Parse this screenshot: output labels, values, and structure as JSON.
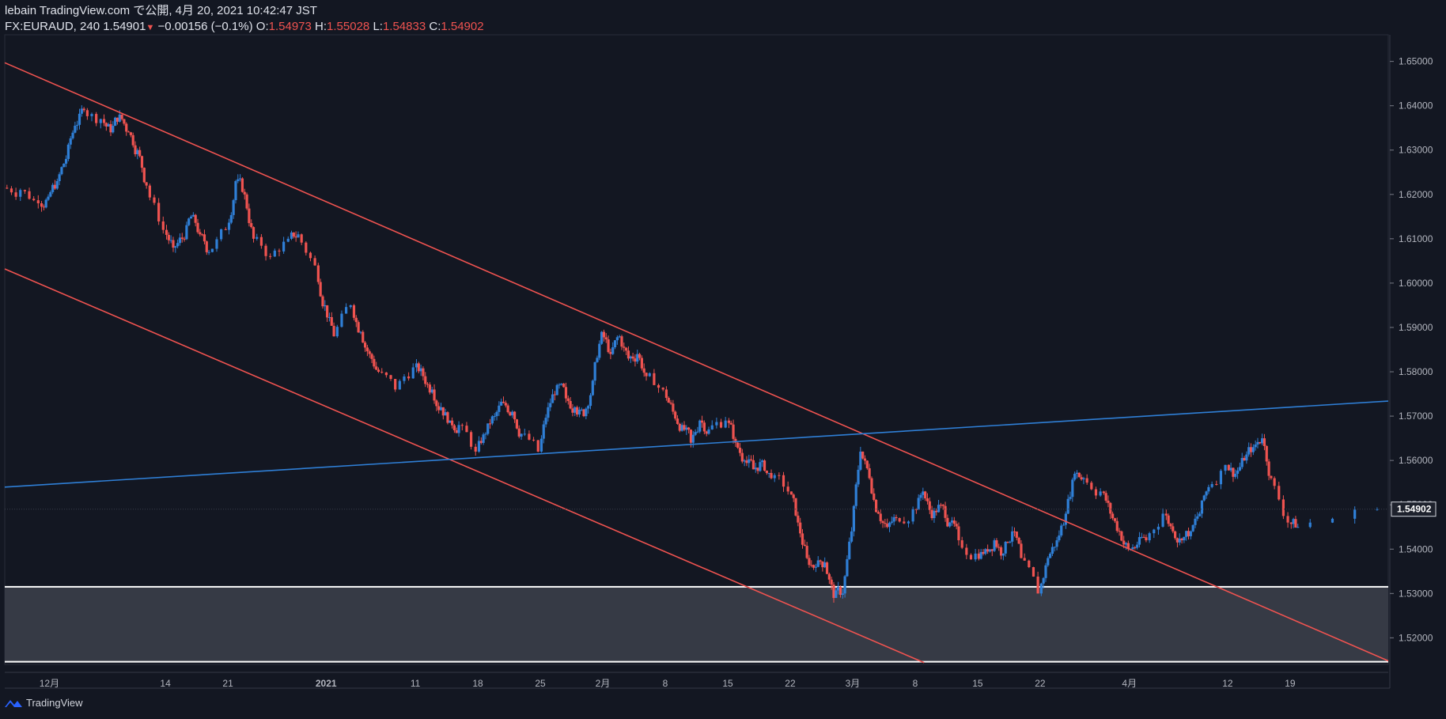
{
  "header": {
    "publish_line": "lebain TradingView.com で公開, 4月 20, 2021 10:42:47 JST",
    "symbol": "FX:EURAUD, 240",
    "last": "1.54901",
    "change_arrow": "▼",
    "change": "−0.00156 (−0.1%)",
    "o_label": "O:",
    "o": "1.54973",
    "h_label": "H:",
    "h": "1.55028",
    "l_label": "L:",
    "l": "1.54833",
    "c_label": "C:",
    "c": "1.54902"
  },
  "footer": {
    "brand": "TradingView",
    "logo_icon": "tradingview-logo-icon"
  },
  "chart_data": {
    "type": "candlestick",
    "symbol": "FX:EURAUD",
    "timeframe": "240",
    "ylim": [
      1.514,
      1.656
    ],
    "price_ticks": [
      "1.52000",
      "1.53000",
      "1.54000",
      "1.55000",
      "1.56000",
      "1.57000",
      "1.58000",
      "1.59000",
      "1.60000",
      "1.61000",
      "1.62000",
      "1.63000",
      "1.64000",
      "1.65000"
    ],
    "last_price_label": "1.54902",
    "x_ticks": [
      {
        "label": "12月",
        "date": "2020-12-01"
      },
      {
        "label": "14",
        "date": "2020-12-14"
      },
      {
        "label": "21",
        "date": "2020-12-21"
      },
      {
        "label": "2021",
        "date": "2021-01-01"
      },
      {
        "label": "11",
        "date": "2021-01-11"
      },
      {
        "label": "18",
        "date": "2021-01-18"
      },
      {
        "label": "25",
        "date": "2021-01-25"
      },
      {
        "label": "2月",
        "date": "2021-02-01"
      },
      {
        "label": "8",
        "date": "2021-02-08"
      },
      {
        "label": "15",
        "date": "2021-02-15"
      },
      {
        "label": "22",
        "date": "2021-02-22"
      },
      {
        "label": "3月",
        "date": "2021-03-01"
      },
      {
        "label": "8",
        "date": "2021-03-08"
      },
      {
        "label": "15",
        "date": "2021-03-15"
      },
      {
        "label": "22",
        "date": "2021-03-22"
      },
      {
        "label": "4月",
        "date": "2021-04-01"
      },
      {
        "label": "12",
        "date": "2021-04-12"
      },
      {
        "label": "19",
        "date": "2021-04-19"
      }
    ],
    "x_range": [
      "2020-11-26",
      "2021-04-30"
    ],
    "trend_lines": [
      {
        "color": "#ef5350",
        "from": [
          "2020-11-26",
          1.6497
        ],
        "to": [
          "2021-04-30",
          1.5148
        ]
      },
      {
        "color": "#ef5350",
        "from": [
          "2020-11-26",
          1.6032
        ],
        "to": [
          "2021-03-09",
          1.5144
        ]
      },
      {
        "color": "#2f7fd6",
        "from": [
          "2020-11-26",
          1.554
        ],
        "to": [
          "2021-04-30",
          1.5734
        ]
      }
    ],
    "support_zone": {
      "top": 1.5315,
      "bottom": 1.5146,
      "top_color": "#ffffff",
      "fill": "#363a45"
    },
    "closes": [
      [
        "2020-11-26",
        1.621
      ],
      [
        "2020-11-28",
        1.618
      ],
      [
        "2020-11-30",
        1.6195
      ],
      [
        "2020-12-01",
        1.623
      ],
      [
        "2020-12-02",
        1.628
      ],
      [
        "2020-12-03",
        1.6355
      ],
      [
        "2020-12-04",
        1.639
      ],
      [
        "2020-12-05",
        1.637
      ],
      [
        "2020-12-07",
        1.634
      ],
      [
        "2020-12-08",
        1.638
      ],
      [
        "2020-12-09",
        1.634
      ],
      [
        "2020-12-10",
        1.63
      ],
      [
        "2020-12-11",
        1.622
      ],
      [
        "2020-12-12",
        1.612
      ],
      [
        "2020-12-14",
        1.608
      ],
      [
        "2020-12-15",
        1.61
      ],
      [
        "2020-12-16",
        1.615
      ],
      [
        "2020-12-17",
        1.611
      ],
      [
        "2020-12-18",
        1.607
      ],
      [
        "2020-12-19",
        1.612
      ],
      [
        "2020-12-21",
        1.623
      ],
      [
        "2020-12-22",
        1.62
      ],
      [
        "2020-12-23",
        1.61
      ],
      [
        "2020-12-24",
        1.606
      ],
      [
        "2020-12-26",
        1.61
      ],
      [
        "2020-12-28",
        1.611
      ],
      [
        "2020-12-29",
        1.604
      ],
      [
        "2020-12-31",
        1.595
      ],
      [
        "2021-01-01",
        1.588
      ],
      [
        "2021-01-02",
        1.595
      ],
      [
        "2021-01-04",
        1.589
      ],
      [
        "2021-01-05",
        1.584
      ],
      [
        "2021-01-06",
        1.58
      ],
      [
        "2021-01-07",
        1.576
      ],
      [
        "2021-01-09",
        1.581
      ],
      [
        "2021-01-11",
        1.579
      ],
      [
        "2021-01-12",
        1.576
      ],
      [
        "2021-01-13",
        1.572
      ],
      [
        "2021-01-14",
        1.569
      ],
      [
        "2021-01-15",
        1.568
      ],
      [
        "2021-01-16",
        1.562
      ],
      [
        "2021-01-18",
        1.566
      ],
      [
        "2021-01-19",
        1.57
      ],
      [
        "2021-01-20",
        1.573
      ],
      [
        "2021-01-21",
        1.571
      ],
      [
        "2021-01-22",
        1.566
      ],
      [
        "2021-01-23",
        1.562
      ],
      [
        "2021-01-25",
        1.572
      ],
      [
        "2021-01-26",
        1.577
      ],
      [
        "2021-01-27",
        1.574
      ],
      [
        "2021-01-28",
        1.572
      ],
      [
        "2021-01-29",
        1.57
      ],
      [
        "2021-01-30",
        1.578
      ],
      [
        "2021-01-31",
        1.589
      ],
      [
        "2021-02-01",
        1.584
      ],
      [
        "2021-02-02",
        1.588
      ],
      [
        "2021-02-03",
        1.583
      ],
      [
        "2021-02-04",
        1.584
      ],
      [
        "2021-02-05",
        1.579
      ],
      [
        "2021-02-06",
        1.576
      ],
      [
        "2021-02-08",
        1.571
      ],
      [
        "2021-02-09",
        1.568
      ],
      [
        "2021-02-10",
        1.564
      ],
      [
        "2021-02-11",
        1.569
      ],
      [
        "2021-02-12",
        1.567
      ],
      [
        "2021-02-13",
        1.569
      ],
      [
        "2021-02-15",
        1.564
      ],
      [
        "2021-02-16",
        1.56
      ],
      [
        "2021-02-17",
        1.558
      ],
      [
        "2021-02-18",
        1.56
      ],
      [
        "2021-02-19",
        1.556
      ],
      [
        "2021-02-20",
        1.553
      ],
      [
        "2021-02-22",
        1.546
      ],
      [
        "2021-02-23",
        1.538
      ],
      [
        "2021-02-24",
        1.536
      ],
      [
        "2021-02-25",
        1.537
      ],
      [
        "2021-02-26",
        1.529
      ],
      [
        "2021-02-27",
        1.53
      ],
      [
        "2021-02-28",
        1.544
      ],
      [
        "2021-03-01",
        1.562
      ],
      [
        "2021-03-02",
        1.556
      ],
      [
        "2021-03-03",
        1.548
      ],
      [
        "2021-03-04",
        1.545
      ],
      [
        "2021-03-05",
        1.547
      ],
      [
        "2021-03-06",
        1.549
      ],
      [
        "2021-03-08",
        1.553
      ],
      [
        "2021-03-09",
        1.547
      ],
      [
        "2021-03-10",
        1.55
      ],
      [
        "2021-03-11",
        1.546
      ],
      [
        "2021-03-12",
        1.542
      ],
      [
        "2021-03-13",
        1.539
      ],
      [
        "2021-03-15",
        1.54
      ],
      [
        "2021-03-16",
        1.542
      ],
      [
        "2021-03-17",
        1.539
      ],
      [
        "2021-03-18",
        1.544
      ],
      [
        "2021-03-19",
        1.538
      ],
      [
        "2021-03-20",
        1.53
      ],
      [
        "2021-03-22",
        1.538
      ],
      [
        "2021-03-23",
        1.542
      ],
      [
        "2021-03-24",
        1.548
      ],
      [
        "2021-03-25",
        1.557
      ],
      [
        "2021-03-26",
        1.556
      ],
      [
        "2021-03-27",
        1.553
      ],
      [
        "2021-03-29",
        1.548
      ],
      [
        "2021-03-30",
        1.544
      ],
      [
        "2021-03-31",
        1.54
      ],
      [
        "2021-04-01",
        1.541
      ],
      [
        "2021-04-02",
        1.542
      ],
      [
        "2021-04-03",
        1.548
      ],
      [
        "2021-04-05",
        1.544
      ],
      [
        "2021-04-06",
        1.542
      ],
      [
        "2021-04-07",
        1.544
      ],
      [
        "2021-04-08",
        1.548
      ],
      [
        "2021-04-09",
        1.554
      ],
      [
        "2021-04-10",
        1.559
      ],
      [
        "2021-04-12",
        1.557
      ],
      [
        "2021-04-13",
        1.56
      ],
      [
        "2021-04-14",
        1.563
      ],
      [
        "2021-04-15",
        1.565
      ],
      [
        "2021-04-16",
        1.556
      ],
      [
        "2021-04-17",
        1.546
      ],
      [
        "2021-04-19",
        1.545
      ],
      [
        "2021-04-20",
        1.549
      ]
    ]
  }
}
